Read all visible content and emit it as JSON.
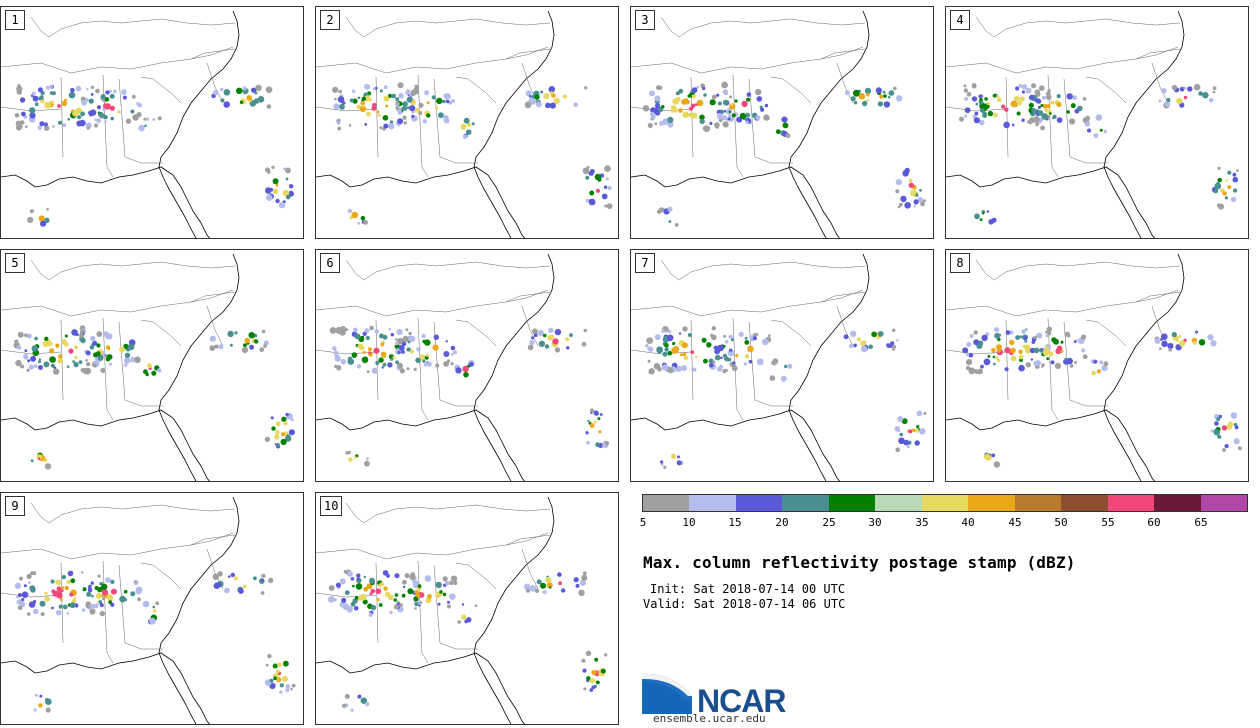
{
  "panels": [
    {
      "label": "1"
    },
    {
      "label": "2"
    },
    {
      "label": "3"
    },
    {
      "label": "4"
    },
    {
      "label": "5"
    },
    {
      "label": "6"
    },
    {
      "label": "7"
    },
    {
      "label": "8"
    },
    {
      "label": "9"
    },
    {
      "label": "10"
    }
  ],
  "colorbar": {
    "colors": [
      "#a0a0a0",
      "#b4bcec",
      "#5a5ad8",
      "#4a9090",
      "#008000",
      "#b8d8b8",
      "#e8d860",
      "#e8a818",
      "#b87c28",
      "#8c5030",
      "#f04878",
      "#6c1838",
      "#b048a8"
    ],
    "ticks": [
      "5",
      "10",
      "15",
      "20",
      "25",
      "30",
      "35",
      "40",
      "45",
      "50",
      "55",
      "60",
      "65"
    ]
  },
  "title": "Max. column reflectivity postage stamp (dBZ)",
  "init": "Init: Sat 2018-07-14 00 UTC",
  "valid": "Valid: Sat 2018-07-14 06 UTC",
  "logo": {
    "name": "NCAR",
    "url": "ensemble.ucar.edu"
  }
}
